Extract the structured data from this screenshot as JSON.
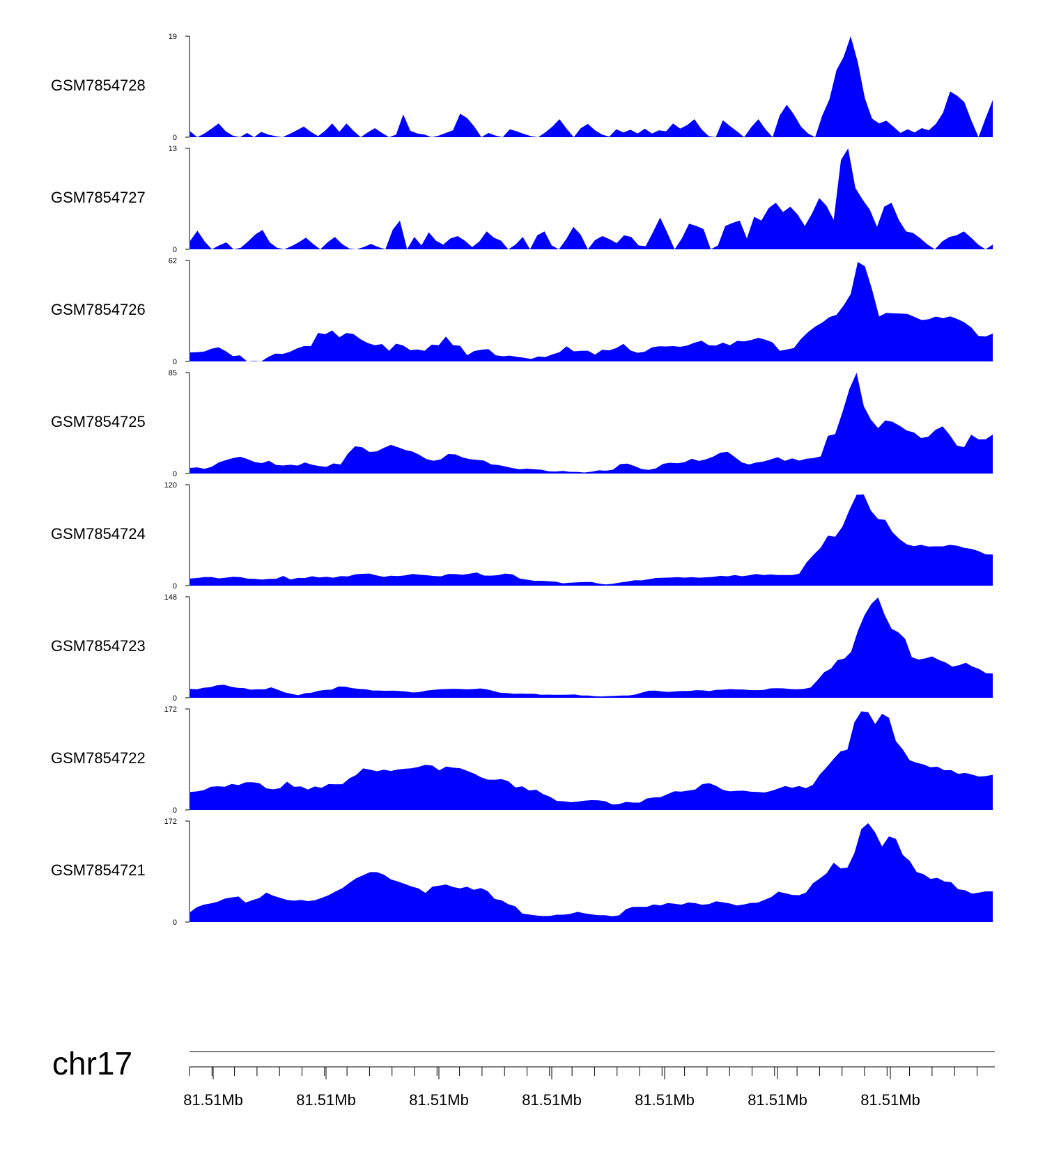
{
  "chart_data": {
    "type": "area",
    "color": "#0000ff",
    "chromosome": "chr17",
    "x_ticks": [
      "81.51Mb",
      "81.51Mb",
      "81.51Mb",
      "81.51Mb",
      "81.51Mb",
      "81.51Mb",
      "81.51Mb"
    ],
    "tracks": [
      {
        "name": "GSM7854728",
        "ymax": 19,
        "ymin": 0,
        "values": [
          1.1,
          0,
          0.7,
          1.6,
          2.6,
          1.1,
          0.3,
          0,
          0.8,
          0,
          1,
          0.5,
          0.2,
          0,
          0.6,
          1.3,
          2,
          1,
          0.2,
          1.2,
          2.6,
          1,
          2.6,
          1.2,
          0,
          0.9,
          1.7,
          0.8,
          0,
          0.5,
          4.3,
          1.2,
          0.7,
          0.5,
          0,
          0.3,
          0.8,
          1.3,
          4.4,
          3.6,
          2,
          0,
          0.8,
          0.3,
          0,
          1.5,
          1.1,
          0.6,
          0.2,
          0,
          0.9,
          2,
          3.4,
          1.6,
          0,
          1.7,
          2.5,
          1.3,
          0.5,
          0.1,
          1.5,
          0.9,
          1.4,
          0.7,
          1.6,
          0.7,
          1.3,
          1.1,
          2.6,
          1.6,
          2.3,
          3.4,
          1.5,
          0.2,
          0,
          3.2,
          2.1,
          1.1,
          0,
          1.9,
          3.4,
          1.5,
          0,
          4.1,
          6.1,
          4.3,
          2,
          0.7,
          0,
          4.1,
          7.1,
          12.6,
          15.1,
          19,
          14.1,
          7.3,
          3.5,
          2.6,
          3.1,
          2,
          0.8,
          1.5,
          0.9,
          1.7,
          1.3,
          2.5,
          4.6,
          8.6,
          7.8,
          6.6,
          3.1,
          0,
          3.6,
          7
        ]
      },
      {
        "name": "GSM7854727",
        "ymax": 13,
        "ymin": 0,
        "values": [
          1.1,
          2.4,
          1,
          0,
          0.5,
          0.9,
          0,
          0.2,
          1,
          1.9,
          2.5,
          0.9,
          0.2,
          0,
          0.4,
          0.9,
          1.5,
          0.7,
          0,
          0.9,
          1.6,
          0.7,
          0.1,
          0,
          0.3,
          0.7,
          0.3,
          0,
          2.5,
          3.7,
          0,
          1.6,
          0.5,
          2.2,
          1.1,
          0.6,
          1.4,
          1.7,
          1.1,
          0.3,
          1,
          2.3,
          1.5,
          1.1,
          0,
          0.6,
          1.6,
          0,
          1.8,
          2.3,
          0.5,
          0,
          1.3,
          2.9,
          1.9,
          0,
          1.2,
          1.7,
          1.3,
          0.8,
          1.8,
          1.6,
          0.5,
          0.4,
          2.2,
          4.1,
          2.1,
          0,
          1.4,
          3.3,
          3,
          2.6,
          0,
          0.5,
          3,
          3.4,
          3.7,
          1.4,
          4.2,
          3.7,
          5.3,
          6,
          4.8,
          5.5,
          4.5,
          3,
          4.6,
          6.6,
          5.6,
          3.8,
          11.5,
          13,
          7.9,
          6.4,
          5.1,
          2.9,
          5.5,
          6,
          3.8,
          2.3,
          2.1,
          1.4,
          0.6,
          0,
          1,
          1.6,
          1.8,
          2.3,
          1.5,
          0.6,
          0,
          0.6
        ]
      },
      {
        "name": "GSM7854726",
        "ymax": 62,
        "ymin": 0,
        "values": [
          5.5,
          5.7,
          6.1,
          7.8,
          8.7,
          6.3,
          3.3,
          3.7,
          0,
          0.3,
          0,
          2.8,
          4.8,
          4.6,
          5.8,
          7.9,
          9.4,
          9.4,
          17.5,
          16.7,
          19,
          14.8,
          17.5,
          16.8,
          13.6,
          11.3,
          9.9,
          10.7,
          6.5,
          10.9,
          9.8,
          6.9,
          7.3,
          6.5,
          10.3,
          9.9,
          15.3,
          10,
          9.6,
          3.8,
          6.4,
          7.2,
          7.6,
          3.8,
          3.2,
          3.6,
          2.8,
          2.3,
          1.5,
          3,
          2.7,
          4.3,
          5.7,
          9.3,
          6.2,
          6.5,
          6.6,
          4.2,
          7.1,
          6.8,
          8.2,
          10.8,
          6.7,
          5.3,
          6,
          8.6,
          9.3,
          9.2,
          9.4,
          9,
          9.8,
          11.5,
          12.7,
          9.9,
          9.7,
          11.5,
          9.9,
          12.6,
          12.3,
          13.2,
          14.5,
          13.3,
          11.7,
          6.5,
          7.3,
          8.2,
          13.8,
          18,
          21.4,
          23.9,
          27.2,
          28.6,
          34.3,
          41.4,
          61.1,
          58.4,
          44.3,
          27.6,
          29.8,
          29.5,
          29.4,
          29.1,
          27.3,
          25.4,
          25.9,
          27.6,
          26.5,
          27.7,
          26.1,
          24,
          20.8,
          15.6,
          15.3,
          17.1
        ]
      },
      {
        "name": "GSM7854725",
        "ymax": 85,
        "ymin": 0,
        "values": [
          4.7,
          5.2,
          3.9,
          5.7,
          9.4,
          11.4,
          13.1,
          14.1,
          12.2,
          9.7,
          8.8,
          10.8,
          7.2,
          6.8,
          7.4,
          6.7,
          9.3,
          7.4,
          6.3,
          5.6,
          8.5,
          7.6,
          16.7,
          22.9,
          22.1,
          18.2,
          18.6,
          21.6,
          24.1,
          22.1,
          19.9,
          18.5,
          15.7,
          12.1,
          10.8,
          12,
          16.4,
          16.1,
          13.6,
          12.1,
          11.6,
          10.9,
          7.7,
          7.2,
          5.9,
          4.5,
          3.6,
          4.1,
          3.6,
          3.2,
          1.9,
          1.7,
          2.2,
          1.4,
          1.4,
          0.9,
          1.5,
          2.7,
          2.4,
          3.2,
          7.9,
          8.4,
          6.3,
          3.8,
          3.1,
          4.4,
          8.2,
          9.1,
          8.6,
          9.6,
          12.5,
          10.6,
          12,
          14.3,
          17.6,
          18.3,
          13.9,
          9.3,
          7.6,
          9.3,
          10.1,
          11.9,
          13.8,
          10.7,
          12.7,
          10.9,
          12.5,
          13,
          14.4,
          31.7,
          33.1,
          51.2,
          71.2,
          84.9,
          56.7,
          45.4,
          38.2,
          44.7,
          43.6,
          40.2,
          36.2,
          34.6,
          29.9,
          31,
          36.8,
          39.7,
          32.5,
          23.5,
          22.2,
          32.7,
          28.8,
          28.8,
          32.8
        ]
      },
      {
        "name": "GSM7854724",
        "ymax": 120,
        "ymin": 0,
        "values": [
          8.5,
          9.1,
          10.3,
          10.3,
          8.6,
          9.5,
          10.5,
          10.1,
          8.4,
          8,
          7.3,
          8,
          8.2,
          11.6,
          7.3,
          9.2,
          9.1,
          11.2,
          9.8,
          10.5,
          9.4,
          11.3,
          11,
          13.4,
          14.1,
          14.4,
          12.2,
          10.4,
          11.8,
          11.4,
          12.2,
          13.9,
          13.1,
          12.4,
          11.5,
          11.1,
          13.9,
          13.7,
          12.9,
          14.2,
          15.6,
          12,
          11.9,
          12.5,
          14.4,
          13.3,
          8.4,
          7.1,
          5.8,
          5.8,
          5.3,
          4.8,
          2.8,
          3.5,
          4,
          4.4,
          4.4,
          2.5,
          1.5,
          2.3,
          3.7,
          4.9,
          6.4,
          6.3,
          7.6,
          9.1,
          9.4,
          9.6,
          10.2,
          9.5,
          10.2,
          9.4,
          9.9,
          10.4,
          11.7,
          11.1,
          12.6,
          11.2,
          12.3,
          13.8,
          12.7,
          13.3,
          12.6,
          12.6,
          12.6,
          14.2,
          27.4,
          36.8,
          45.2,
          59.3,
          58.2,
          69.8,
          90.1,
          108,
          108.3,
          89.1,
          79.2,
          78.2,
          63.5,
          55.3,
          49.1,
          47,
          48.5,
          46.4,
          46.8,
          46.7,
          48.5,
          47.5,
          45,
          43.8,
          41.1,
          37.2,
          36.9
        ]
      },
      {
        "name": "GSM7854723",
        "ymax": 148,
        "ymin": 0,
        "values": [
          13.1,
          12.5,
          14.7,
          15.6,
          18.4,
          19.1,
          16.3,
          14.5,
          14.2,
          11.8,
          12.6,
          12.4,
          15.3,
          11.8,
          8,
          5.8,
          3.7,
          6.6,
          7.3,
          10.2,
          11.4,
          12,
          16.5,
          16.3,
          14.2,
          13,
          12.5,
          10.6,
          10.6,
          10.2,
          10.4,
          10,
          9.2,
          7.7,
          8.4,
          10.4,
          11.5,
          12.6,
          12.8,
          13.2,
          12.9,
          12.4,
          12.8,
          13.7,
          12.4,
          9.8,
          7.2,
          6.9,
          5.9,
          6.2,
          5.8,
          6,
          4.4,
          4.6,
          4.4,
          4.3,
          4.5,
          4.9,
          3.3,
          3.3,
          2.3,
          1.9,
          2.4,
          2.9,
          3.4,
          3.4,
          4.7,
          7.7,
          10.3,
          10.5,
          9.3,
          8.6,
          9.4,
          9.9,
          10,
          11.1,
          10.8,
          9.8,
          11.6,
          11.8,
          12.8,
          12.2,
          12.1,
          11.2,
          11.1,
          11.4,
          13.8,
          14,
          13.8,
          12.8,
          12.6,
          13,
          15,
          25.6,
          37.5,
          42.8,
          55.2,
          57.5,
          67.4,
          98,
          121.4,
          137.5,
          147.1,
          121,
          101.2,
          95.9,
          86.6,
          59.6,
          56,
          57.8,
          60.6,
          55.5,
          51.8,
          45.6,
          47.8,
          51.3,
          45.6,
          42.3,
          36,
          35.6
        ]
      },
      {
        "name": "GSM7854722",
        "ymax": 172,
        "ymin": 0,
        "values": [
          30.6,
          31.5,
          33.8,
          39.4,
          40.2,
          39.4,
          44.3,
          42.2,
          47,
          47.2,
          45.6,
          36.8,
          35.1,
          37.1,
          48.1,
          39.3,
          40.1,
          34.8,
          39.9,
          37.7,
          44,
          43.6,
          43.8,
          53.6,
          59.6,
          70.7,
          68.6,
          65.8,
          68.4,
          66.3,
          68.8,
          70.1,
          70.8,
          73.3,
          76.7,
          75.4,
          67.3,
          73.8,
          71.9,
          71,
          66.8,
          61.9,
          55.8,
          51.6,
          51.4,
          52.4,
          48.7,
          38.2,
          40.2,
          33,
          34.4,
          27,
          22.4,
          15.3,
          14.7,
          13,
          14.1,
          15.6,
          16.6,
          16.4,
          14.8,
          9.3,
          10,
          13.7,
          12.5,
          12.5,
          19.5,
          21.2,
          21.7,
          26.8,
          31.7,
          31.1,
          32.9,
          34.8,
          43.9,
          45.5,
          41,
          34.2,
          31.5,
          32.5,
          32.7,
          31,
          30.5,
          29.7,
          32.3,
          36.4,
          40.7,
          37.6,
          40.7,
          37.1,
          42.7,
          60.1,
          72.9,
          86.9,
          99.6,
          102.7,
          149.1,
          167.8,
          166.5,
          146.3,
          163.7,
          156.8,
          117.2,
          102.8,
          84.4,
          80.3,
          77.3,
          72.7,
          73.5,
          67.6,
          67.7,
          61.3,
          63,
          60.1,
          56.8,
          57.6,
          59.8
        ]
      },
      {
        "name": "GSM7854721",
        "ymax": 172,
        "ymin": 0,
        "values": [
          16.9,
          25.5,
          29.7,
          31.7,
          34.7,
          39.8,
          41.7,
          43.4,
          33.1,
          37.2,
          40.9,
          50.1,
          44.8,
          41.2,
          37.7,
          36.3,
          37.7,
          35.6,
          37,
          41,
          45.7,
          52.1,
          57.6,
          66.6,
          74.6,
          79.7,
          84.9,
          84.9,
          80.7,
          72.7,
          69.1,
          64.9,
          60.5,
          57.2,
          49.6,
          60.2,
          61.9,
          63.9,
          59.7,
          57.3,
          60.2,
          54.9,
          57.9,
          52.8,
          39.3,
          37,
          30.3,
          26.7,
          14.4,
          12.7,
          11.1,
          10.2,
          10.3,
          12.4,
          12.4,
          14.1,
          17.3,
          14.8,
          13.1,
          11.5,
          11.5,
          9.9,
          11.4,
          22,
          25.7,
          25.9,
          25.9,
          29.9,
          28.1,
          32.3,
          31.1,
          29.5,
          33.2,
          32.1,
          29.4,
          30.6,
          35.2,
          33.4,
          31.6,
          28.1,
          29.8,
          32.5,
          33,
          37.6,
          42.6,
          51.6,
          49.1,
          46.2,
          45.7,
          50.1,
          66,
          74.1,
          83.2,
          101,
          91.4,
          92.6,
          117.3,
          158,
          168.5,
          152.6,
          128.6,
          145.9,
          141.6,
          114.2,
          104,
          85.1,
          81.4,
          73.5,
          75.2,
          69.1,
          67.9,
          55.8,
          54.1,
          48.3,
          50.1,
          52.2,
          52.2
        ]
      }
    ]
  }
}
